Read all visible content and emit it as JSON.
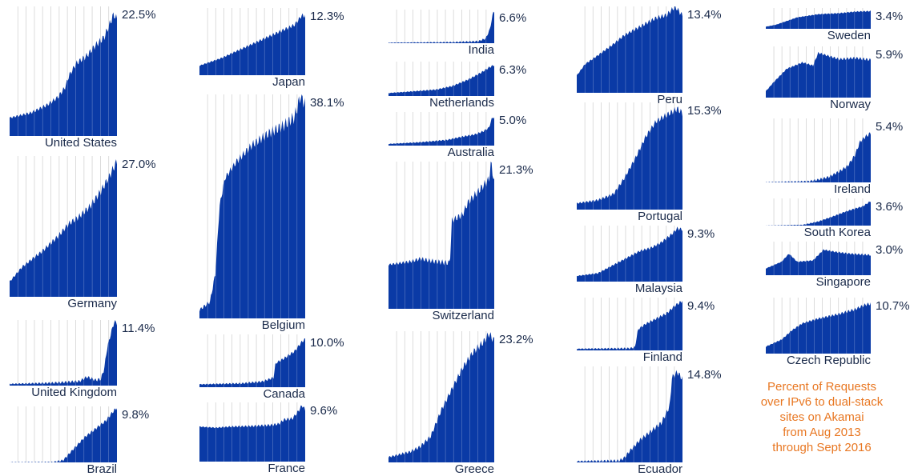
{
  "chart_data": {
    "type": "area",
    "x_range": [
      "Aug 2013",
      "Sept 2016"
    ],
    "colors": {
      "area": "#0a3aa6",
      "grid": "#c8c8c8",
      "text": "#1a2a4a",
      "caption": "#e87722"
    },
    "caption": [
      "Percent of Requests",
      "over IPv6 to dual-stack",
      "sites on Akamai",
      "from Aug 2013",
      "through Sept 2016"
    ],
    "charts": [
      {
        "country": "United States",
        "final_label": "22.5%",
        "final_value": 22.5,
        "ylim": [
          0,
          25
        ],
        "profile": [
          [
            0,
            3.5
          ],
          [
            0.2,
            4.5
          ],
          [
            0.35,
            6
          ],
          [
            0.45,
            7.5
          ],
          [
            0.52,
            9.5
          ],
          [
            0.55,
            11.5
          ],
          [
            0.62,
            14
          ],
          [
            0.72,
            15.5
          ],
          [
            0.8,
            17.5
          ],
          [
            0.88,
            19
          ],
          [
            0.93,
            21.5
          ],
          [
            0.97,
            23.5
          ],
          [
            1,
            22.5
          ]
        ]
      },
      {
        "country": "Germany",
        "final_label": "27.0%",
        "final_value": 27.0,
        "ylim": [
          0,
          28
        ],
        "profile": [
          [
            0,
            3
          ],
          [
            0.12,
            6
          ],
          [
            0.3,
            9
          ],
          [
            0.45,
            12
          ],
          [
            0.55,
            14.5
          ],
          [
            0.65,
            16
          ],
          [
            0.75,
            18
          ],
          [
            0.85,
            21
          ],
          [
            0.93,
            24
          ],
          [
            1,
            27
          ]
        ]
      },
      {
        "country": "United Kingdom",
        "final_label": "11.4%",
        "final_value": 11.4,
        "ylim": [
          0,
          12
        ],
        "profile": [
          [
            0,
            0.3
          ],
          [
            0.4,
            0.5
          ],
          [
            0.65,
            0.8
          ],
          [
            0.72,
            1.6
          ],
          [
            0.8,
            1
          ],
          [
            0.85,
            1.2
          ],
          [
            0.88,
            3
          ],
          [
            0.91,
            7
          ],
          [
            0.95,
            10
          ],
          [
            0.98,
            12
          ],
          [
            1,
            11.4
          ]
        ]
      },
      {
        "country": "Brazil",
        "final_label": "9.8%",
        "final_value": 9.8,
        "ylim": [
          0,
          10
        ],
        "profile": [
          [
            0,
            0
          ],
          [
            0.4,
            0
          ],
          [
            0.5,
            0.4
          ],
          [
            0.6,
            2.5
          ],
          [
            0.7,
            4.5
          ],
          [
            0.8,
            6
          ],
          [
            0.9,
            7.5
          ],
          [
            0.96,
            9
          ],
          [
            1,
            9.8
          ]
        ]
      },
      {
        "country": "Japan",
        "final_label": "12.3%",
        "final_value": 12.3,
        "ylim": [
          0,
          14
        ],
        "profile": [
          [
            0,
            2
          ],
          [
            0.2,
            3.5
          ],
          [
            0.4,
            5.5
          ],
          [
            0.6,
            7.5
          ],
          [
            0.75,
            9
          ],
          [
            0.9,
            10.5
          ],
          [
            0.97,
            12.5
          ],
          [
            1,
            12.3
          ]
        ]
      },
      {
        "country": "Belgium",
        "final_label": "38.1%",
        "final_value": 38.1,
        "ylim": [
          0,
          40
        ],
        "profile": [
          [
            0,
            1.5
          ],
          [
            0.1,
            3
          ],
          [
            0.15,
            8
          ],
          [
            0.19,
            20
          ],
          [
            0.24,
            25
          ],
          [
            0.35,
            28
          ],
          [
            0.5,
            31
          ],
          [
            0.65,
            33
          ],
          [
            0.8,
            34.5
          ],
          [
            0.9,
            36
          ],
          [
            0.96,
            40
          ],
          [
            1,
            38.1
          ]
        ]
      },
      {
        "country": "Canada",
        "final_label": "10.0%",
        "final_value": 10.0,
        "ylim": [
          0,
          11
        ],
        "profile": [
          [
            0,
            0.6
          ],
          [
            0.4,
            0.8
          ],
          [
            0.6,
            1.2
          ],
          [
            0.7,
            2
          ],
          [
            0.72,
            5
          ],
          [
            0.8,
            6
          ],
          [
            0.9,
            7.5
          ],
          [
            0.97,
            9.5
          ],
          [
            1,
            10
          ]
        ]
      },
      {
        "country": "France",
        "final_label": "9.6%",
        "final_value": 9.6,
        "ylim": [
          0,
          11
        ],
        "profile": [
          [
            0,
            6.5
          ],
          [
            0.15,
            6.3
          ],
          [
            0.3,
            6.5
          ],
          [
            0.5,
            6.6
          ],
          [
            0.68,
            6.8
          ],
          [
            0.75,
            7
          ],
          [
            0.8,
            7.8
          ],
          [
            0.88,
            8
          ],
          [
            0.94,
            9.5
          ],
          [
            0.97,
            10.5
          ],
          [
            1,
            9.6
          ]
        ]
      },
      {
        "country": "India",
        "final_label": "6.6%",
        "final_value": 6.6,
        "ylim": [
          0,
          7
        ],
        "profile": [
          [
            0,
            0.1
          ],
          [
            0.6,
            0.2
          ],
          [
            0.85,
            0.4
          ],
          [
            0.92,
            1
          ],
          [
            0.96,
            3
          ],
          [
            0.99,
            6.5
          ],
          [
            1,
            6.6
          ]
        ]
      },
      {
        "country": "Netherlands",
        "final_label": "6.3%",
        "final_value": 6.3,
        "ylim": [
          0,
          7
        ],
        "profile": [
          [
            0,
            0.6
          ],
          [
            0.2,
            0.9
          ],
          [
            0.45,
            1.3
          ],
          [
            0.6,
            2
          ],
          [
            0.75,
            3.3
          ],
          [
            0.88,
            4.8
          ],
          [
            0.95,
            5.8
          ],
          [
            1,
            6.3
          ]
        ]
      },
      {
        "country": "Australia",
        "final_label": "5.0%",
        "final_value": 5.0,
        "ylim": [
          0,
          6
        ],
        "profile": [
          [
            0,
            0.3
          ],
          [
            0.3,
            0.6
          ],
          [
            0.55,
            1
          ],
          [
            0.7,
            1.6
          ],
          [
            0.82,
            2
          ],
          [
            0.9,
            2.6
          ],
          [
            0.95,
            3.2
          ],
          [
            0.98,
            5
          ],
          [
            1,
            5
          ]
        ]
      },
      {
        "country": "Switzerland",
        "final_label": "21.3%",
        "final_value": 21.3,
        "ylim": [
          0,
          25
        ],
        "profile": [
          [
            0,
            7.5
          ],
          [
            0.2,
            8
          ],
          [
            0.3,
            8.5
          ],
          [
            0.45,
            8
          ],
          [
            0.58,
            7.8
          ],
          [
            0.6,
            15
          ],
          [
            0.7,
            16
          ],
          [
            0.75,
            18
          ],
          [
            0.85,
            20
          ],
          [
            0.95,
            22
          ],
          [
            0.97,
            25
          ],
          [
            1,
            21.3
          ]
        ]
      },
      {
        "country": "Greece",
        "final_label": "23.2%",
        "final_value": 23.2,
        "ylim": [
          0,
          25
        ],
        "profile": [
          [
            0,
            1
          ],
          [
            0.2,
            2
          ],
          [
            0.3,
            3
          ],
          [
            0.4,
            5
          ],
          [
            0.5,
            10
          ],
          [
            0.6,
            14
          ],
          [
            0.7,
            18
          ],
          [
            0.8,
            21
          ],
          [
            0.9,
            23
          ],
          [
            0.95,
            24.5
          ],
          [
            1,
            23.2
          ]
        ]
      },
      {
        "country": "Peru",
        "final_label": "13.4%",
        "final_value": 13.4,
        "ylim": [
          0,
          15
        ],
        "profile": [
          [
            0,
            3
          ],
          [
            0.08,
            5
          ],
          [
            0.2,
            6.5
          ],
          [
            0.35,
            8.5
          ],
          [
            0.45,
            10
          ],
          [
            0.55,
            11
          ],
          [
            0.65,
            12
          ],
          [
            0.75,
            13
          ],
          [
            0.85,
            13.5
          ],
          [
            0.93,
            15
          ],
          [
            1,
            13.4
          ]
        ]
      },
      {
        "country": "Portugal",
        "final_label": "15.3%",
        "final_value": 15.3,
        "ylim": [
          0,
          17
        ],
        "profile": [
          [
            0,
            1
          ],
          [
            0.2,
            1.5
          ],
          [
            0.35,
            2.5
          ],
          [
            0.45,
            5
          ],
          [
            0.55,
            8
          ],
          [
            0.65,
            11.5
          ],
          [
            0.75,
            14
          ],
          [
            0.85,
            15
          ],
          [
            0.95,
            16
          ],
          [
            1,
            15.3
          ]
        ]
      },
      {
        "country": "Malaysia",
        "final_label": "9.3%",
        "final_value": 9.3,
        "ylim": [
          0,
          10
        ],
        "profile": [
          [
            0,
            1
          ],
          [
            0.2,
            1.5
          ],
          [
            0.35,
            3
          ],
          [
            0.5,
            4.5
          ],
          [
            0.6,
            5.5
          ],
          [
            0.7,
            6
          ],
          [
            0.8,
            7
          ],
          [
            0.9,
            8.5
          ],
          [
            0.95,
            9.5
          ],
          [
            1,
            9.3
          ]
        ]
      },
      {
        "country": "Finland",
        "final_label": "9.4%",
        "final_value": 9.4,
        "ylim": [
          0,
          10
        ],
        "profile": [
          [
            0,
            0.3
          ],
          [
            0.5,
            0.4
          ],
          [
            0.55,
            0.6
          ],
          [
            0.58,
            4
          ],
          [
            0.65,
            5
          ],
          [
            0.75,
            6
          ],
          [
            0.85,
            7
          ],
          [
            0.93,
            8.5
          ],
          [
            1,
            9.4
          ]
        ]
      },
      {
        "country": "Ecuador",
        "final_label": "14.8%",
        "final_value": 14.8,
        "ylim": [
          0,
          17
        ],
        "profile": [
          [
            0,
            0.2
          ],
          [
            0.4,
            0.3
          ],
          [
            0.45,
            0.8
          ],
          [
            0.5,
            2
          ],
          [
            0.6,
            4
          ],
          [
            0.7,
            5.5
          ],
          [
            0.8,
            7
          ],
          [
            0.88,
            10
          ],
          [
            0.9,
            15
          ],
          [
            0.95,
            16
          ],
          [
            1,
            14.8
          ]
        ]
      },
      {
        "country": "Sweden",
        "final_label": "3.4%",
        "final_value": 3.4,
        "ylim": [
          0,
          4
        ],
        "profile": [
          [
            0,
            0.4
          ],
          [
            0.1,
            0.8
          ],
          [
            0.2,
            1.5
          ],
          [
            0.3,
            2.2
          ],
          [
            0.5,
            2.8
          ],
          [
            0.7,
            3
          ],
          [
            0.85,
            3.3
          ],
          [
            1,
            3.4
          ]
        ]
      },
      {
        "country": "Norway",
        "final_label": "5.9%",
        "final_value": 5.9,
        "ylim": [
          0,
          8
        ],
        "profile": [
          [
            0,
            1
          ],
          [
            0.08,
            2.5
          ],
          [
            0.2,
            4.5
          ],
          [
            0.35,
            5.5
          ],
          [
            0.45,
            5
          ],
          [
            0.5,
            7
          ],
          [
            0.6,
            6.5
          ],
          [
            0.7,
            6
          ],
          [
            0.85,
            6.2
          ],
          [
            1,
            5.9
          ]
        ]
      },
      {
        "country": "Ireland",
        "final_label": "5.4%",
        "final_value": 5.4,
        "ylim": [
          0,
          7
        ],
        "profile": [
          [
            0,
            0
          ],
          [
            0.4,
            0.1
          ],
          [
            0.5,
            0.3
          ],
          [
            0.6,
            0.6
          ],
          [
            0.7,
            1.2
          ],
          [
            0.78,
            1.8
          ],
          [
            0.85,
            3
          ],
          [
            0.9,
            4.5
          ],
          [
            0.95,
            5
          ],
          [
            1,
            5.4
          ]
        ]
      },
      {
        "country": "South Korea",
        "final_label": "3.6%",
        "final_value": 3.6,
        "ylim": [
          0,
          4
        ],
        "profile": [
          [
            0,
            0
          ],
          [
            0.35,
            0.1
          ],
          [
            0.5,
            0.6
          ],
          [
            0.65,
            1.4
          ],
          [
            0.75,
            2
          ],
          [
            0.85,
            2.5
          ],
          [
            0.92,
            2.8
          ],
          [
            1,
            3.6
          ]
        ]
      },
      {
        "country": "Singapore",
        "final_label": "3.0%",
        "final_value": 3.0,
        "ylim": [
          0,
          5
        ],
        "profile": [
          [
            0,
            1
          ],
          [
            0.15,
            2
          ],
          [
            0.22,
            3.2
          ],
          [
            0.3,
            2
          ],
          [
            0.45,
            2.2
          ],
          [
            0.55,
            3.8
          ],
          [
            0.65,
            3.5
          ],
          [
            0.8,
            3.2
          ],
          [
            1,
            3
          ]
        ]
      },
      {
        "country": "Czech Republic",
        "final_label": "10.7%",
        "final_value": 10.7,
        "ylim": [
          0,
          12
        ],
        "profile": [
          [
            0,
            1.5
          ],
          [
            0.15,
            3
          ],
          [
            0.25,
            5
          ],
          [
            0.35,
            6.5
          ],
          [
            0.5,
            7.5
          ],
          [
            0.7,
            8.5
          ],
          [
            0.85,
            9.5
          ],
          [
            0.95,
            10.5
          ],
          [
            1,
            10.7
          ]
        ]
      }
    ]
  }
}
